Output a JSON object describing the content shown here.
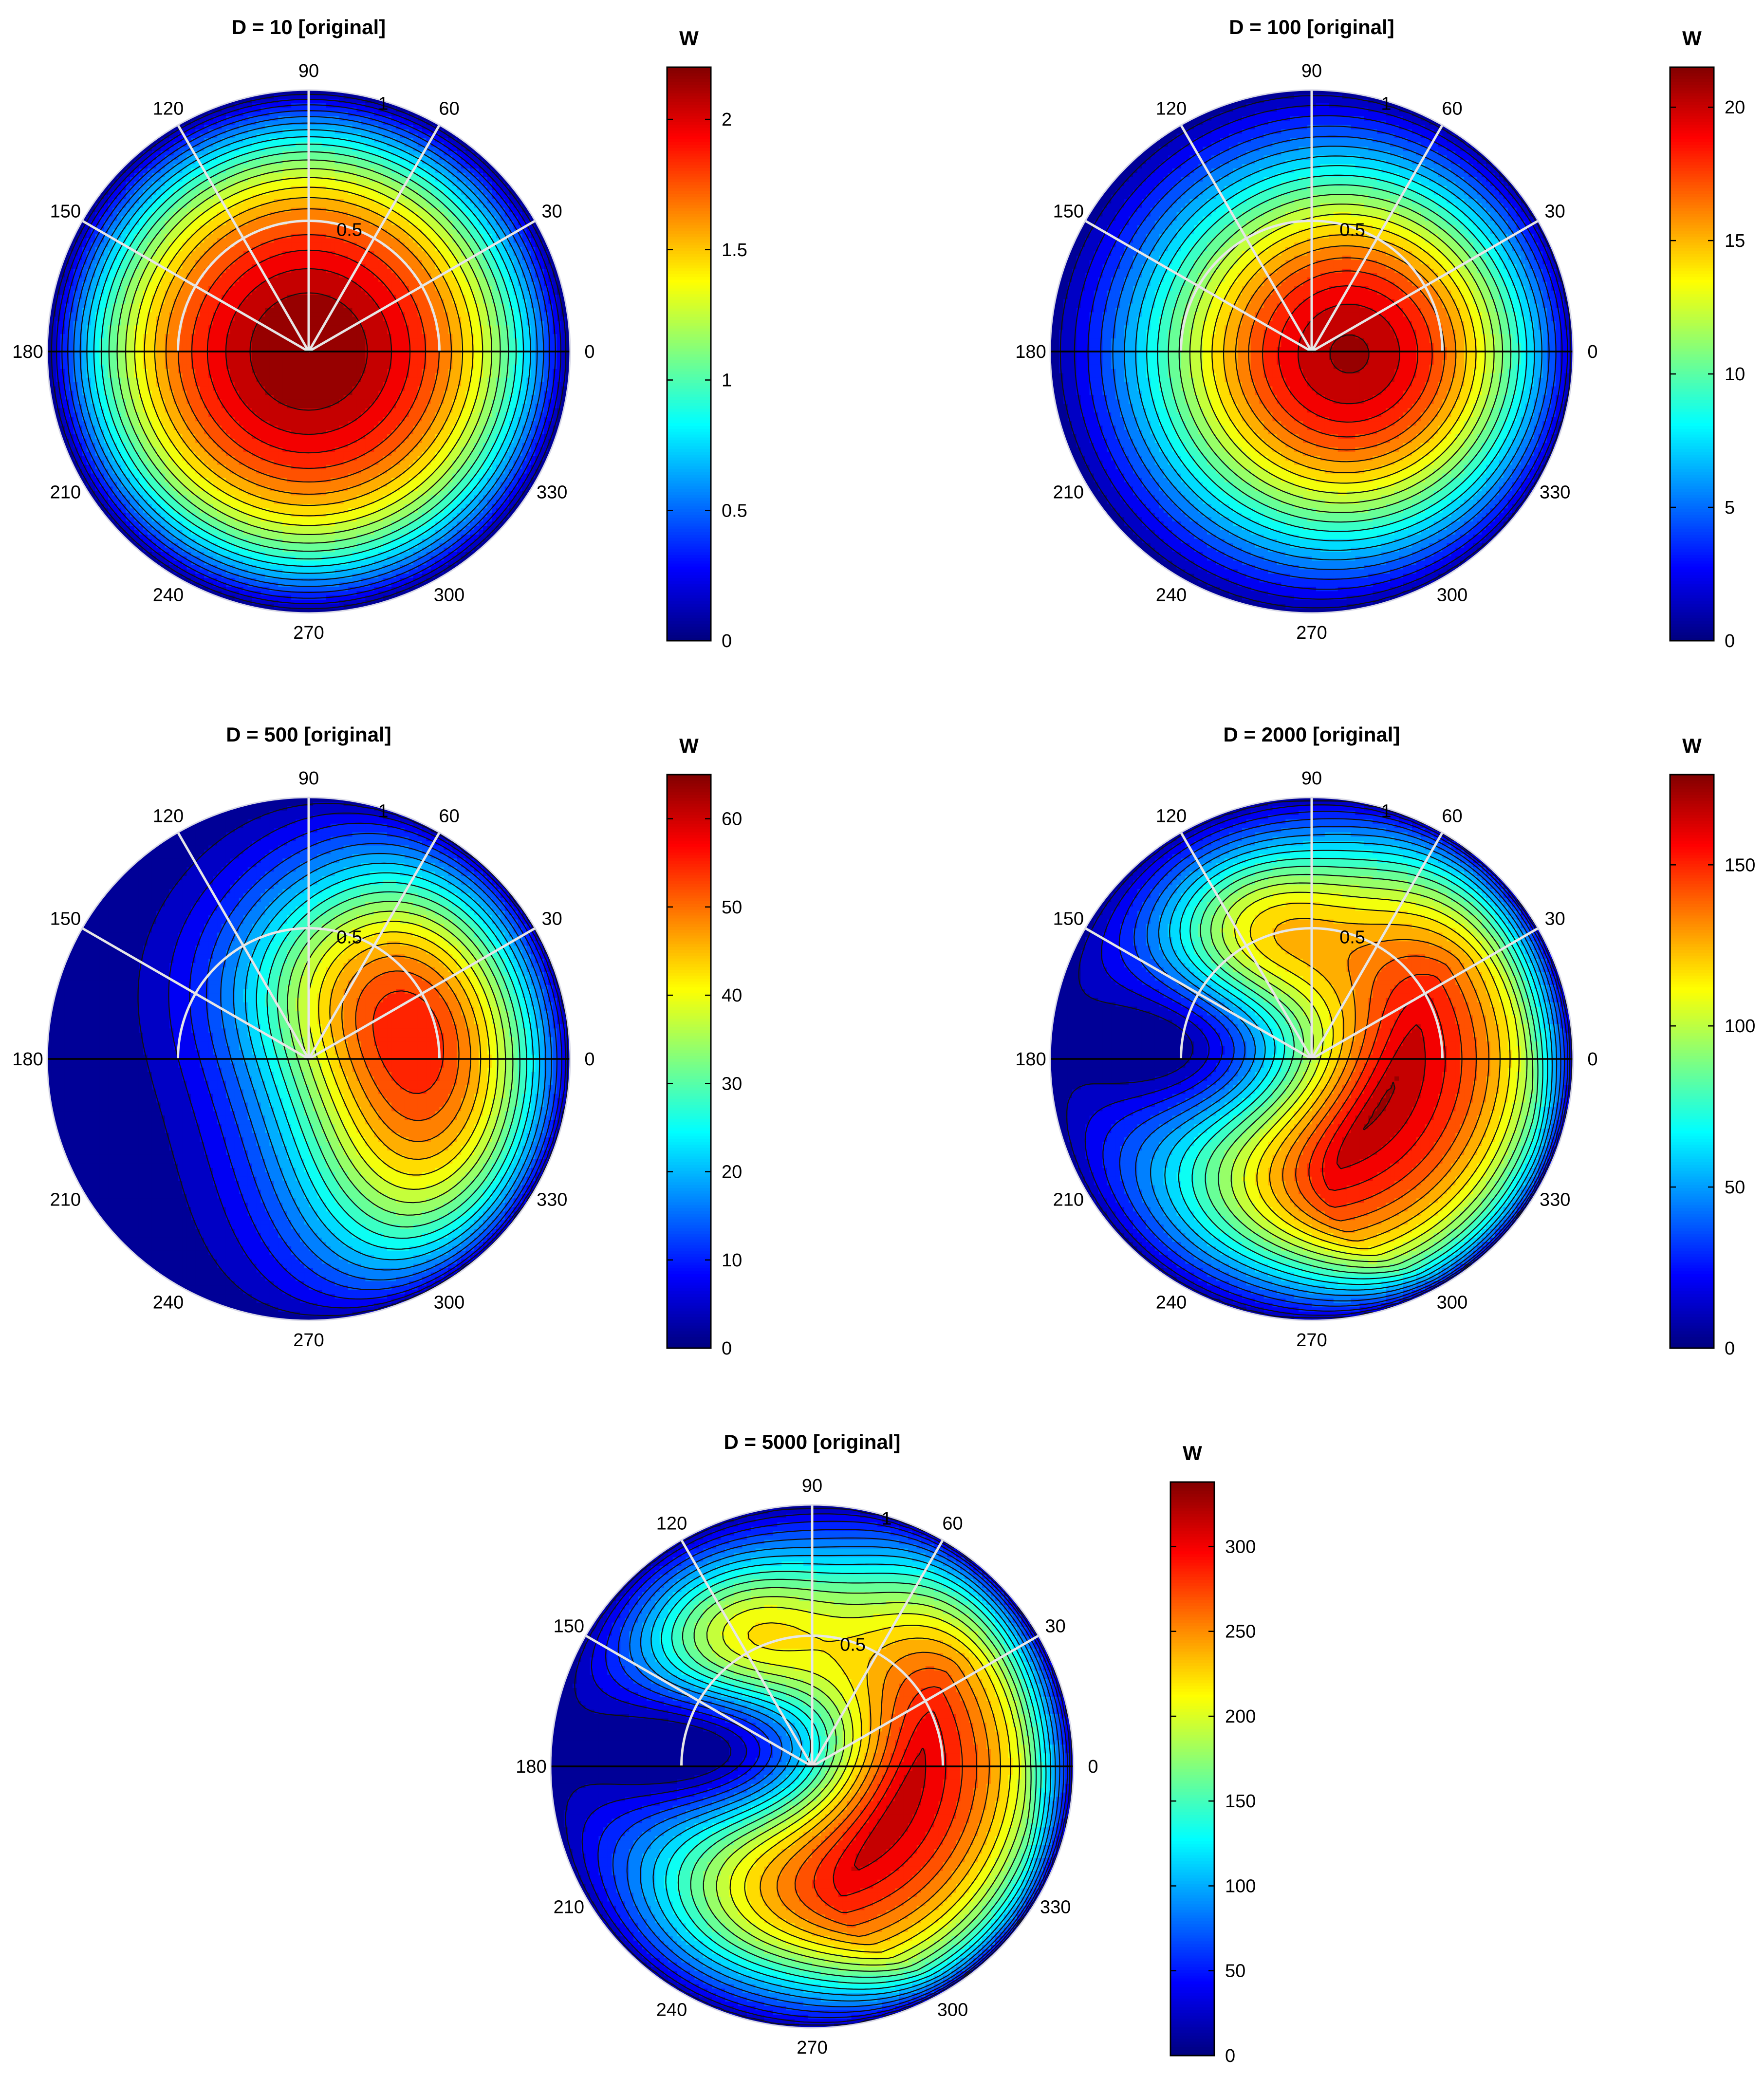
{
  "chart_data": [
    {
      "type": "polar-contour",
      "title": "D = 10 [original]",
      "colorbar_label": "W",
      "colormap": "jet",
      "clim": [
        0,
        2.2
      ],
      "colorbar_ticks": [
        "0",
        "0.5",
        "1",
        "1.5",
        "2"
      ],
      "colorbar_tick_values": [
        0,
        0.5,
        1,
        1.5,
        2
      ],
      "theta_tick_labels": [
        "0",
        "30",
        "60",
        "90",
        "120",
        "150",
        "180",
        "210",
        "240",
        "270",
        "300",
        "330"
      ],
      "r_tick_labels": [
        "0.5",
        "1"
      ],
      "r_tick_values": [
        0.5,
        1
      ],
      "max_value": 2.2,
      "peak": {
        "theta_deg": 0,
        "r": 0.0
      },
      "contour_levels": 22
    },
    {
      "type": "polar-contour",
      "title": "D = 100 [original]",
      "colorbar_label": "W",
      "colormap": "jet",
      "clim": [
        0,
        21.5
      ],
      "colorbar_ticks": [
        "0",
        "5",
        "10",
        "15",
        "20"
      ],
      "colorbar_tick_values": [
        0,
        5,
        10,
        15,
        20
      ],
      "theta_tick_labels": [
        "0",
        "30",
        "60",
        "90",
        "120",
        "150",
        "180",
        "210",
        "240",
        "270",
        "300",
        "330"
      ],
      "r_tick_labels": [
        "0.5",
        "1"
      ],
      "r_tick_values": [
        0.5,
        1
      ],
      "max_value": 21.5,
      "peak": {
        "theta_deg": 0,
        "r": 0.3
      },
      "contour_levels": 22
    },
    {
      "type": "polar-contour",
      "title": "D = 500 [original]",
      "colorbar_label": "W",
      "colormap": "jet",
      "clim": [
        0,
        65
      ],
      "colorbar_ticks": [
        "0",
        "10",
        "20",
        "30",
        "40",
        "50",
        "60"
      ],
      "colorbar_tick_values": [
        0,
        10,
        20,
        30,
        40,
        50,
        60
      ],
      "theta_tick_labels": [
        "0",
        "30",
        "60",
        "90",
        "120",
        "150",
        "180",
        "210",
        "240",
        "270",
        "300",
        "330"
      ],
      "r_tick_labels": [
        "0.5",
        "1"
      ],
      "r_tick_values": [
        0.5,
        1
      ],
      "max_value": 65,
      "peak": {
        "theta_deg": -12,
        "r": 0.55
      },
      "contour_levels": 22
    },
    {
      "type": "polar-contour",
      "title": "D = 2000 [original]",
      "colorbar_label": "W",
      "colormap": "jet",
      "clim": [
        0,
        178
      ],
      "colorbar_ticks": [
        "0",
        "50",
        "100",
        "150"
      ],
      "colorbar_tick_values": [
        0,
        50,
        100,
        150
      ],
      "theta_tick_labels": [
        "0",
        "30",
        "60",
        "90",
        "120",
        "150",
        "180",
        "210",
        "240",
        "270",
        "300",
        "330"
      ],
      "r_tick_labels": [
        "0.5",
        "1"
      ],
      "r_tick_values": [
        0.5,
        1
      ],
      "max_value": 178,
      "peak": {
        "theta_deg": 0,
        "r": 0.6
      },
      "contour_levels": 22
    },
    {
      "type": "polar-contour",
      "title": "D = 5000 [original]",
      "colorbar_label": "W",
      "colormap": "jet",
      "clim": [
        0,
        338
      ],
      "colorbar_ticks": [
        "0",
        "50",
        "100",
        "150",
        "200",
        "250",
        "300"
      ],
      "colorbar_tick_values": [
        0,
        50,
        100,
        150,
        200,
        250,
        300
      ],
      "theta_tick_labels": [
        "0",
        "30",
        "60",
        "90",
        "120",
        "150",
        "180",
        "210",
        "240",
        "270",
        "300",
        "330"
      ],
      "r_tick_labels": [
        "0.5",
        "1"
      ],
      "r_tick_values": [
        0.5,
        1
      ],
      "max_value": 338,
      "peak": {
        "theta_deg": 0,
        "r": 0.62
      },
      "contour_levels": 22
    }
  ]
}
